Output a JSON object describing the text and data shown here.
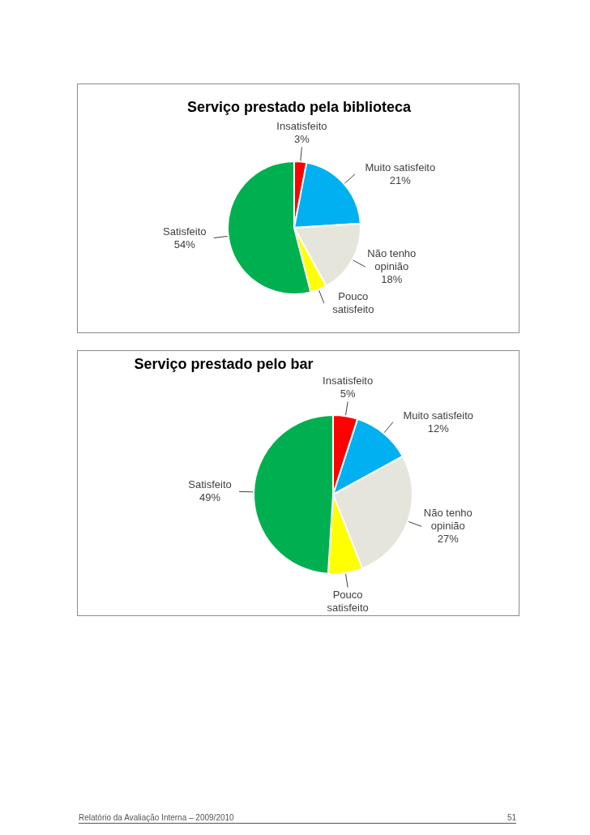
{
  "chart_data": [
    {
      "type": "pie",
      "title": "Serviço prestado pela biblioteca",
      "categories": [
        "Insatisfeito",
        "Muito satisfeito",
        "Não tenho opinião",
        "Pouco satisfeito",
        "Satisfeito"
      ],
      "values": [
        3,
        21,
        18,
        4,
        54
      ],
      "colors": [
        "#ff0000",
        "#00b0f0",
        "#e6e5dc",
        "#ffff00",
        "#00b050"
      ],
      "value_labels": [
        "3%",
        "21%",
        "18%",
        null,
        "54%"
      ]
    },
    {
      "type": "pie",
      "title": "Serviço prestado pelo bar",
      "categories": [
        "Insatisfeito",
        "Muito satisfeito",
        "Não tenho opinião",
        "Pouco satisfeito",
        "Satisfeito"
      ],
      "values": [
        5,
        12,
        27,
        7,
        49
      ],
      "colors": [
        "#ff0000",
        "#00b0f0",
        "#e6e5dc",
        "#ffff00",
        "#00b050"
      ],
      "value_labels": [
        "5%",
        "12%",
        "27%",
        null,
        "49%"
      ],
      "annotations": [
        "Relatório da Avaliação Interna – 2009/2010",
        "51"
      ]
    }
  ]
}
